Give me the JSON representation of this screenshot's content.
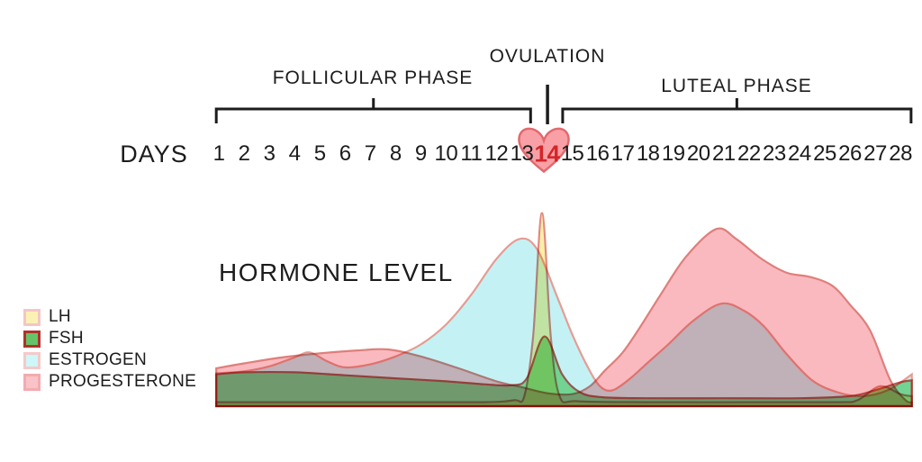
{
  "titles": {
    "hormone_level": "HORMONE LEVEL",
    "days_axis": "DAYS"
  },
  "phases": {
    "follicular": {
      "label": "FOLLICULAR PHASE",
      "day_span": [
        0.9,
        13.35
      ]
    },
    "ovulation": {
      "label": "OVULATION",
      "day": 14.02
    },
    "luteal": {
      "label": "LUTEAL PHASE",
      "day_span": [
        14.62,
        28.42
      ]
    }
  },
  "days": {
    "numbers": [
      1,
      2,
      3,
      4,
      5,
      6,
      7,
      8,
      9,
      10,
      11,
      12,
      13,
      14,
      15,
      16,
      17,
      18,
      19,
      20,
      21,
      22,
      23,
      24,
      25,
      26,
      27,
      28
    ],
    "highlighted_day": 14,
    "highlight_color": "#d3262a"
  },
  "ovulation_marker": {
    "icon": "heart-icon",
    "day": 13.9,
    "fill": "#f8a0a6",
    "stroke": "#e2696e"
  },
  "legend": [
    {
      "name": "LH",
      "swatch_fill": "#fbf1b4",
      "swatch_border": "#f3c6c6"
    },
    {
      "name": "FSH",
      "swatch_fill": "#67c368",
      "swatch_border": "#b1312d"
    },
    {
      "name": "ESTROGEN",
      "swatch_fill": "#cdf7f8",
      "swatch_border": "#f5c9ca"
    },
    {
      "name": "PROGESTERONE",
      "swatch_fill": "#f9c3c8",
      "swatch_border": "#f3abb1"
    }
  ],
  "chart_data": {
    "type": "area",
    "title": "HORMONE LEVEL",
    "xlabel": "DAYS",
    "x_range": [
      1,
      28
    ],
    "y_range": [
      0,
      100
    ],
    "y_ticks_shown": false,
    "grid": false,
    "legend_position": "left",
    "series": [
      {
        "name": "LH",
        "fill": "#faeda2",
        "stroke": "#e2887e",
        "points": [
          [
            0.9,
            2
          ],
          [
            4,
            2
          ],
          [
            8,
            2
          ],
          [
            11.5,
            2
          ],
          [
            12.7,
            3
          ],
          [
            13.1,
            5
          ],
          [
            13.45,
            35
          ],
          [
            13.8,
            97
          ],
          [
            14.15,
            35
          ],
          [
            14.5,
            5
          ],
          [
            15.2,
            2.5
          ],
          [
            18,
            2
          ],
          [
            22,
            2
          ],
          [
            25.5,
            2
          ],
          [
            26.3,
            3
          ],
          [
            27.2,
            10
          ],
          [
            28,
            6
          ],
          [
            28.45,
            5
          ]
        ]
      },
      {
        "name": "FSH",
        "fill": "#8bdb8f",
        "stroke": "#c25b52",
        "points": [
          [
            0.9,
            16
          ],
          [
            2,
            17
          ],
          [
            4,
            17
          ],
          [
            6,
            15.5
          ],
          [
            8,
            14
          ],
          [
            10,
            12.5
          ],
          [
            11.5,
            11
          ],
          [
            12.6,
            10.5
          ],
          [
            13.2,
            14
          ],
          [
            13.9,
            35
          ],
          [
            14.6,
            16
          ],
          [
            15.3,
            7
          ],
          [
            16.2,
            4.5
          ],
          [
            18,
            4
          ],
          [
            21,
            4
          ],
          [
            24,
            4
          ],
          [
            26,
            5
          ],
          [
            27,
            8
          ],
          [
            28,
            12
          ],
          [
            28.45,
            13
          ]
        ]
      },
      {
        "name": "ESTROGEN",
        "fill": "#bff1f3",
        "stroke": "#e69c93",
        "points": [
          [
            0.9,
            16.5
          ],
          [
            2,
            17.5
          ],
          [
            3,
            20
          ],
          [
            4,
            24.5
          ],
          [
            4.6,
            27
          ],
          [
            5.3,
            22.5
          ],
          [
            6,
            19.5
          ],
          [
            7,
            21
          ],
          [
            8,
            25
          ],
          [
            9,
            31
          ],
          [
            10,
            41
          ],
          [
            11,
            56
          ],
          [
            12,
            74
          ],
          [
            12.9,
            84
          ],
          [
            13.6,
            79
          ],
          [
            14.4,
            55
          ],
          [
            15,
            36
          ],
          [
            15.6,
            20
          ],
          [
            16.1,
            10
          ],
          [
            16.6,
            8
          ],
          [
            17.3,
            14
          ],
          [
            18,
            22
          ],
          [
            18.8,
            31
          ],
          [
            19.8,
            43
          ],
          [
            20.9,
            51.5
          ],
          [
            21.8,
            48
          ],
          [
            22.6,
            40
          ],
          [
            23.5,
            26
          ],
          [
            24.5,
            13
          ],
          [
            25.5,
            7
          ],
          [
            26.5,
            5
          ],
          [
            27.5,
            8
          ],
          [
            28.45,
            16
          ]
        ]
      },
      {
        "name": "PROGESTERONE",
        "fill": "#f8b3ba",
        "stroke": "#de7f7b",
        "points": [
          [
            0.9,
            19
          ],
          [
            2,
            21.5
          ],
          [
            3.5,
            24.5
          ],
          [
            5,
            26.5
          ],
          [
            6.5,
            28
          ],
          [
            7.7,
            28.5
          ],
          [
            9,
            25
          ],
          [
            10.5,
            19
          ],
          [
            12,
            12.5
          ],
          [
            13,
            9.5
          ],
          [
            14,
            6.5
          ],
          [
            15,
            6
          ],
          [
            15.7,
            10
          ],
          [
            16.3,
            18
          ],
          [
            17,
            27
          ],
          [
            17.7,
            40
          ],
          [
            18.5,
            56
          ],
          [
            19.5,
            75
          ],
          [
            20.7,
            89
          ],
          [
            21.5,
            84
          ],
          [
            22.5,
            74
          ],
          [
            23.5,
            67
          ],
          [
            24.4,
            65
          ],
          [
            25.3,
            60.5
          ],
          [
            26,
            51
          ],
          [
            26.8,
            38
          ],
          [
            27.6,
            13
          ],
          [
            28.2,
            3
          ],
          [
            28.45,
            2
          ]
        ]
      }
    ]
  }
}
